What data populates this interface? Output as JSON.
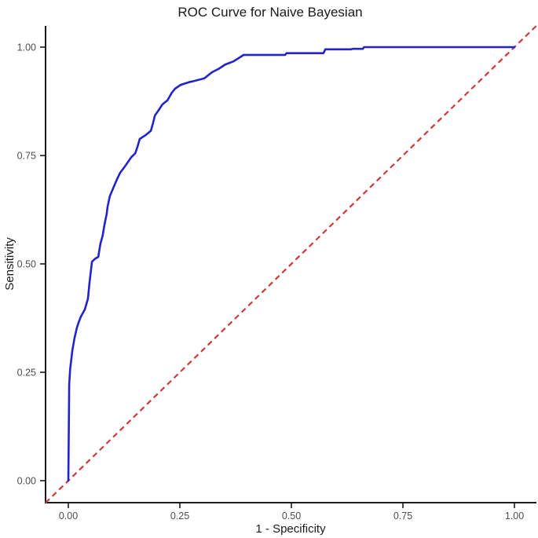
{
  "chart_data": {
    "type": "line",
    "title": "ROC Curve for Naive Bayesian",
    "xlabel": "1 - Specificity",
    "ylabel": "Sensitivity",
    "xlim": [
      -0.051,
      1.049
    ],
    "ylim": [
      -0.051,
      1.049
    ],
    "grid": false,
    "legend": "none",
    "x_ticks": [
      0.0,
      0.25,
      0.5,
      0.75,
      1.0
    ],
    "x_tick_labels": [
      "0.00",
      "0.25",
      "0.50",
      "0.75",
      "1.00"
    ],
    "y_ticks": [
      0.0,
      0.25,
      0.5,
      0.75,
      1.0
    ],
    "y_tick_labels": [
      "0.00",
      "0.25",
      "0.50",
      "0.75",
      "1.00"
    ],
    "axis_color": "#1a1a1a",
    "tick_label_color": "#4d4d4d",
    "series": [
      {
        "name": "ROC curve (Naive Bayesian)",
        "color": "#2323cc",
        "style": "solid",
        "width": 2.6,
        "points": [
          [
            0.0,
            0.0
          ],
          [
            0.002,
            0.221
          ],
          [
            0.004,
            0.257
          ],
          [
            0.009,
            0.3
          ],
          [
            0.014,
            0.33
          ],
          [
            0.019,
            0.352
          ],
          [
            0.023,
            0.365
          ],
          [
            0.028,
            0.378
          ],
          [
            0.037,
            0.395
          ],
          [
            0.044,
            0.42
          ],
          [
            0.047,
            0.452
          ],
          [
            0.049,
            0.47
          ],
          [
            0.053,
            0.505
          ],
          [
            0.06,
            0.512
          ],
          [
            0.067,
            0.516
          ],
          [
            0.072,
            0.547
          ],
          [
            0.077,
            0.565
          ],
          [
            0.081,
            0.59
          ],
          [
            0.086,
            0.615
          ],
          [
            0.088,
            0.632
          ],
          [
            0.093,
            0.656
          ],
          [
            0.102,
            0.678
          ],
          [
            0.109,
            0.695
          ],
          [
            0.116,
            0.71
          ],
          [
            0.129,
            0.728
          ],
          [
            0.141,
            0.746
          ],
          [
            0.15,
            0.755
          ],
          [
            0.155,
            0.77
          ],
          [
            0.16,
            0.788
          ],
          [
            0.173,
            0.797
          ],
          [
            0.185,
            0.807
          ],
          [
            0.19,
            0.825
          ],
          [
            0.194,
            0.842
          ],
          [
            0.204,
            0.857
          ],
          [
            0.211,
            0.868
          ],
          [
            0.222,
            0.877
          ],
          [
            0.232,
            0.895
          ],
          [
            0.239,
            0.904
          ],
          [
            0.252,
            0.913
          ],
          [
            0.27,
            0.919
          ],
          [
            0.282,
            0.922
          ],
          [
            0.305,
            0.928
          ],
          [
            0.322,
            0.942
          ],
          [
            0.337,
            0.95
          ],
          [
            0.352,
            0.96
          ],
          [
            0.37,
            0.967
          ],
          [
            0.387,
            0.978
          ],
          [
            0.393,
            0.982
          ],
          [
            0.486,
            0.982
          ],
          [
            0.489,
            0.986
          ],
          [
            0.572,
            0.986
          ],
          [
            0.576,
            0.995
          ],
          [
            0.634,
            0.995
          ],
          [
            0.637,
            0.996
          ],
          [
            0.66,
            0.996
          ],
          [
            0.663,
            1.0
          ],
          [
            1.0,
            1.0
          ]
        ]
      },
      {
        "name": "chance diagonal",
        "color": "#cc3a3a",
        "style": "dashed",
        "width": 2.2,
        "points": [
          [
            -0.051,
            -0.051
          ],
          [
            1.049,
            1.049
          ]
        ]
      }
    ]
  }
}
